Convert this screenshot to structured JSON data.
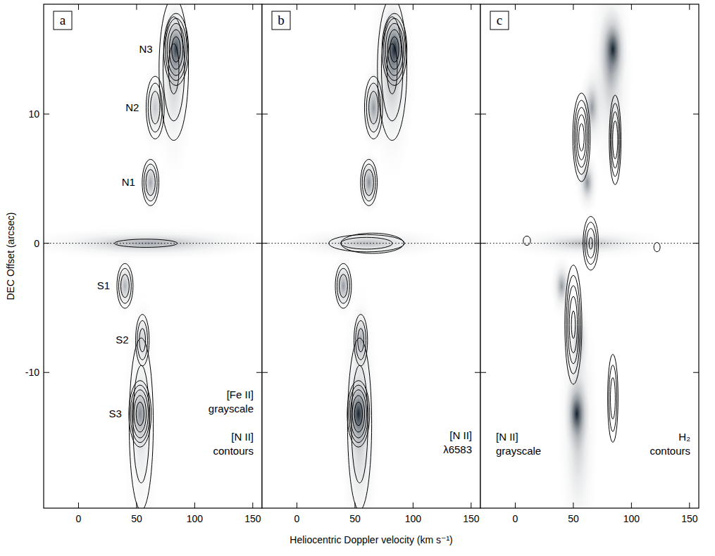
{
  "chart_data": {
    "type": "position-velocity",
    "x_label": "Heliocentric Doppler velocity (km s⁻¹)",
    "y_label": "DEC Offset (arcsec)",
    "xlim": [
      -30,
      158
    ],
    "xticks": [
      0,
      50,
      100,
      150
    ],
    "ylim": [
      -20.5,
      18.5
    ],
    "yticks": [
      -10,
      0,
      10
    ],
    "hline": 0,
    "panels": [
      {
        "panel": "a",
        "annotations": [
          [
            "[Fe II]",
            "grayscale"
          ],
          [
            "[N II]",
            "contours"
          ]
        ],
        "grayscale": {
          "color": "#13202d",
          "blobs": [
            {
              "v": 84,
              "y": 15,
              "dv": 5,
              "dy": 1.4,
              "peak": 0.85
            },
            {
              "v": 82,
              "y": 13,
              "dv": 7,
              "dy": 3.5,
              "peak": 0.25
            },
            {
              "v": 66,
              "y": 10.5,
              "dv": 5,
              "dy": 1.5,
              "peak": 0.25
            },
            {
              "v": 62,
              "y": 4.7,
              "dv": 4,
              "dy": 1,
              "peak": 0.4
            },
            {
              "v": 60,
              "y": 0,
              "dv": 45,
              "dy": 0.5,
              "peak": 0.4
            },
            {
              "v": 40,
              "y": -3.3,
              "dv": 4,
              "dy": 1,
              "peak": 0.35
            },
            {
              "v": 55,
              "y": -7.5,
              "dv": 4,
              "dy": 1.3,
              "peak": 0.2
            },
            {
              "v": 53,
              "y": -13.2,
              "dv": 4.5,
              "dy": 1.3,
              "peak": 0.45
            },
            {
              "v": 54,
              "y": -14,
              "dv": 7,
              "dy": 4.5,
              "peak": 0.15
            }
          ]
        },
        "contours": {
          "color": "#000000",
          "levels": [
            0.1,
            0.18,
            0.3,
            0.5,
            0.75
          ],
          "blobs": [
            {
              "v": 84,
              "y": 15,
              "dv": 5,
              "dy": 1.3,
              "peak": 1.0,
              "label": "N3"
            },
            {
              "v": 82,
              "y": 13.5,
              "dv": 8,
              "dy": 3.5,
              "peak": 0.35
            },
            {
              "v": 66,
              "y": 10.5,
              "dv": 4.5,
              "dy": 1.4,
              "peak": 0.45,
              "label": "N2"
            },
            {
              "v": 62,
              "y": 4.7,
              "dv": 4,
              "dy": 1,
              "peak": 0.5,
              "label": "N1"
            },
            {
              "v": 58,
              "y": 0,
              "dv": 30,
              "dy": 0.35,
              "peak": 0.15
            },
            {
              "v": 40,
              "y": -3.3,
              "dv": 4,
              "dy": 1,
              "peak": 0.45,
              "label": "S1"
            },
            {
              "v": 55,
              "y": -7.5,
              "dv": 3.5,
              "dy": 1.2,
              "peak": 0.4,
              "label": "S2"
            },
            {
              "v": 53,
              "y": -13.2,
              "dv": 4.5,
              "dy": 1.2,
              "peak": 1.0,
              "label": "S3"
            },
            {
              "v": 54,
              "y": -14,
              "dv": 7,
              "dy": 4.5,
              "peak": 0.3
            }
          ]
        }
      },
      {
        "panel": "b",
        "annotations": [
          [
            "[N II]",
            "λ6583"
          ]
        ],
        "grayscale": {
          "color": "#13202d",
          "blobs": [
            {
              "v": 84,
              "y": 15,
              "dv": 5,
              "dy": 1.3,
              "peak": 1.0
            },
            {
              "v": 82,
              "y": 13.5,
              "dv": 8,
              "dy": 3.5,
              "peak": 0.35
            },
            {
              "v": 66,
              "y": 10.5,
              "dv": 4.5,
              "dy": 1.4,
              "peak": 0.45
            },
            {
              "v": 62,
              "y": 4.7,
              "dv": 4,
              "dy": 1,
              "peak": 0.5
            },
            {
              "v": 60,
              "y": 0,
              "dv": 30,
              "dy": 0.5,
              "peak": 0.3
            },
            {
              "v": 40,
              "y": -3.3,
              "dv": 4,
              "dy": 1,
              "peak": 0.45
            },
            {
              "v": 55,
              "y": -7.5,
              "dv": 3.5,
              "dy": 1.2,
              "peak": 0.4
            },
            {
              "v": 53,
              "y": -13.2,
              "dv": 4.5,
              "dy": 1.2,
              "peak": 1.0
            },
            {
              "v": 54,
              "y": -14,
              "dv": 7,
              "dy": 4.5,
              "peak": 0.3
            }
          ]
        },
        "contours": {
          "color": "#000000",
          "levels": [
            0.1,
            0.18,
            0.3,
            0.5,
            0.75
          ],
          "blobs": [
            {
              "v": 84,
              "y": 15,
              "dv": 5,
              "dy": 1.3,
              "peak": 1.0
            },
            {
              "v": 82,
              "y": 13.5,
              "dv": 8,
              "dy": 3.5,
              "peak": 0.35
            },
            {
              "v": 66,
              "y": 10.5,
              "dv": 4.5,
              "dy": 1.4,
              "peak": 0.45
            },
            {
              "v": 62,
              "y": 4.7,
              "dv": 4,
              "dy": 1,
              "peak": 0.5
            },
            {
              "v": 60,
              "y": 0,
              "dv": 22,
              "dy": 0.45,
              "peak": 0.3
            },
            {
              "v": 65,
              "y": 0,
              "dv": 45,
              "dy": 1.3,
              "peak": 0.12
            },
            {
              "v": 40,
              "y": -3.3,
              "dv": 4,
              "dy": 1,
              "peak": 0.45
            },
            {
              "v": 55,
              "y": -7.5,
              "dv": 3.5,
              "dy": 1.2,
              "peak": 0.4
            },
            {
              "v": 53,
              "y": -13.2,
              "dv": 4.5,
              "dy": 1.2,
              "peak": 1.0
            },
            {
              "v": 54,
              "y": -14,
              "dv": 7,
              "dy": 4.5,
              "peak": 0.3
            }
          ]
        }
      },
      {
        "panel": "c",
        "annotations": [
          [
            "[N II]",
            "grayscale"
          ],
          [
            "H₂",
            "contours"
          ]
        ],
        "grayscale": {
          "color": "#13202d",
          "blobs": [
            {
              "v": 84,
              "y": 15,
              "dv": 5,
              "dy": 1.3,
              "peak": 1.0
            },
            {
              "v": 82,
              "y": 13.5,
              "dv": 8,
              "dy": 3.5,
              "peak": 0.35
            },
            {
              "v": 66,
              "y": 10.5,
              "dv": 4.5,
              "dy": 1.4,
              "peak": 0.45
            },
            {
              "v": 62,
              "y": 4.7,
              "dv": 4,
              "dy": 1,
              "peak": 0.5
            },
            {
              "v": 60,
              "y": 0,
              "dv": 30,
              "dy": 0.5,
              "peak": 0.3
            },
            {
              "v": 40,
              "y": -3.3,
              "dv": 4,
              "dy": 1,
              "peak": 0.45
            },
            {
              "v": 55,
              "y": -7.5,
              "dv": 3.5,
              "dy": 1.2,
              "peak": 0.4
            },
            {
              "v": 53,
              "y": -13.2,
              "dv": 4.5,
              "dy": 1.2,
              "peak": 1.0
            },
            {
              "v": 54,
              "y": -14,
              "dv": 7,
              "dy": 4.5,
              "peak": 0.3
            }
          ]
        },
        "contours": {
          "color": "#000000",
          "levels": [
            0.1,
            0.2,
            0.35,
            0.55,
            0.8
          ],
          "blobs": [
            {
              "v": 57,
              "y": 8.2,
              "dv": 3.5,
              "dy": 1.6,
              "peak": 1.0
            },
            {
              "v": 86,
              "y": 8,
              "dv": 2.5,
              "dy": 1.7,
              "peak": 0.8
            },
            {
              "v": 65,
              "y": 0,
              "dv": 3.5,
              "dy": 1.1,
              "peak": 0.6
            },
            {
              "v": 50,
              "y": -6.3,
              "dv": 3.5,
              "dy": 2.2,
              "peak": 0.9
            },
            {
              "v": 84,
              "y": -12,
              "dv": 2.5,
              "dy": 1.9,
              "peak": 0.5
            },
            {
              "v": 10,
              "y": 0.2,
              "dv": 3.5,
              "dy": 0.4,
              "peak": 0.15
            },
            {
              "v": 122,
              "y": -0.3,
              "dv": 3,
              "dy": 0.4,
              "peak": 0.15
            }
          ]
        }
      }
    ]
  }
}
